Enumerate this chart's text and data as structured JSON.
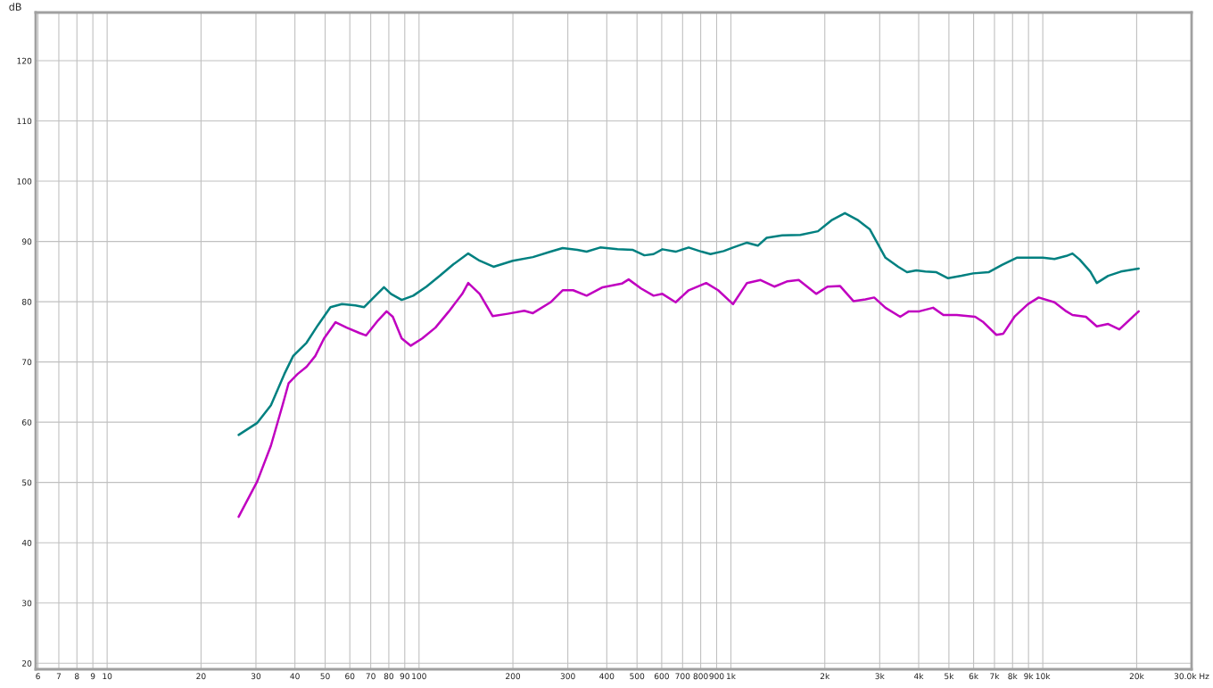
{
  "chart_data": {
    "type": "line",
    "ylabel": "dB",
    "log": "x",
    "grid": true,
    "marker": "none",
    "line_style": "solid",
    "xlim": [
      5.9,
      30000
    ],
    "ylim": [
      19,
      128
    ],
    "xticks": [
      6,
      7,
      8,
      9,
      10,
      20,
      30,
      40,
      50,
      60,
      70,
      80,
      90,
      100,
      200,
      300,
      400,
      500,
      600,
      700,
      800,
      900,
      {
        "value": 1000,
        "label": "1k"
      },
      {
        "value": 2000,
        "label": "2k"
      },
      {
        "value": 3000,
        "label": "3k"
      },
      {
        "value": 4000,
        "label": "4k"
      },
      {
        "value": 5000,
        "label": "5k"
      },
      {
        "value": 6000,
        "label": "6k"
      },
      {
        "value": 7000,
        "label": "7k"
      },
      {
        "value": 8000,
        "label": "8k"
      },
      {
        "value": 9000,
        "label": "9k"
      },
      {
        "value": 10000,
        "label": "10k"
      },
      {
        "value": 20000,
        "label": "20k"
      },
      {
        "value": 30000,
        "label": "30.0k Hz"
      }
    ],
    "yticks": [
      20,
      30,
      40,
      50,
      60,
      70,
      80,
      90,
      100,
      110,
      120
    ],
    "series": [
      {
        "color": "#008080",
        "x": [
          26.4,
          30.3,
          33.5,
          37.0,
          39.5,
          43.6,
          47.4,
          52.0,
          56.6,
          62.5,
          66.7,
          71.2,
          77.2,
          81.3,
          88.0,
          95.8,
          105.6,
          116.6,
          128.8,
          143.8,
          156.5,
          173.3,
          199.8,
          231.8,
          264,
          288.7,
          322,
          344.6,
          381,
          433,
          485,
          528,
          565,
          603,
          665,
          732,
          806,
          860,
          948,
          1016,
          1126,
          1220,
          1302,
          1460,
          1670,
          1902,
          2100,
          2320,
          2560,
          2790,
          3130,
          3440,
          3670,
          3930,
          4200,
          4560,
          4970,
          5490,
          5980,
          6700,
          7400,
          8250,
          9150,
          10000,
          10900,
          11900,
          12450,
          13130,
          14200,
          14900,
          16200,
          17800,
          20300
        ],
        "values": [
          57.9,
          59.9,
          62.8,
          68.0,
          71.0,
          73.2,
          76.1,
          79.1,
          79.6,
          79.4,
          79.1,
          80.6,
          82.4,
          81.3,
          80.3,
          81.0,
          82.5,
          84.3,
          86.2,
          88.0,
          86.8,
          85.8,
          86.8,
          87.4,
          88.3,
          88.9,
          88.6,
          88.3,
          89.0,
          88.7,
          88.6,
          87.7,
          87.9,
          88.7,
          88.3,
          89.0,
          88.3,
          87.9,
          88.4,
          89.0,
          89.8,
          89.3,
          90.6,
          91.0,
          91.1,
          91.7,
          93.5,
          94.7,
          93.5,
          92.0,
          87.3,
          85.8,
          84.9,
          85.2,
          85.0,
          84.9,
          83.9,
          84.3,
          84.7,
          84.9,
          86.1,
          87.3,
          87.3,
          87.3,
          87.1,
          87.6,
          88.0,
          87.0,
          85.0,
          83.1,
          84.3,
          85.0,
          85.5
        ]
      },
      {
        "color": "#c000c0",
        "x": [
          26.4,
          30.3,
          33.5,
          36.5,
          38.2,
          40.8,
          43.6,
          46.5,
          49.6,
          54.0,
          58.6,
          64.5,
          67.6,
          73.9,
          78.7,
          82.4,
          88.0,
          94.1,
          102.4,
          112.9,
          124.7,
          137.6,
          143.8,
          156.5,
          172.3,
          192.5,
          217.5,
          231.8,
          264,
          288.7,
          312,
          344.6,
          388,
          447,
          470,
          515,
          565,
          603,
          665,
          732,
          833,
          910,
          1016,
          1126,
          1245,
          1378,
          1520,
          1650,
          1877,
          2040,
          2240,
          2470,
          2700,
          2880,
          3130,
          3490,
          3720,
          4020,
          4450,
          4800,
          5300,
          6070,
          6450,
          7100,
          7470,
          8140,
          8960,
          9700,
          10900,
          11900,
          12450,
          13750,
          14900,
          16200,
          17600,
          20300
        ],
        "values": [
          44.3,
          50.2,
          56.1,
          62.8,
          66.5,
          68.0,
          69.2,
          71.0,
          73.9,
          76.6,
          75.7,
          74.8,
          74.4,
          76.9,
          78.4,
          77.5,
          73.9,
          72.7,
          73.9,
          75.7,
          78.4,
          81.3,
          83.1,
          81.3,
          77.6,
          78.0,
          78.5,
          78.1,
          79.9,
          81.9,
          81.9,
          81.0,
          82.4,
          83.0,
          83.7,
          82.2,
          81.0,
          81.3,
          79.9,
          81.9,
          83.1,
          81.9,
          79.6,
          83.1,
          83.6,
          82.5,
          83.4,
          83.6,
          81.3,
          82.5,
          82.6,
          80.1,
          80.4,
          80.7,
          79.0,
          77.5,
          78.4,
          78.4,
          79.0,
          77.8,
          77.8,
          77.5,
          76.6,
          74.5,
          74.7,
          77.6,
          79.6,
          80.7,
          79.9,
          78.4,
          77.8,
          77.5,
          75.9,
          76.3,
          75.4,
          78.4
        ]
      }
    ]
  }
}
